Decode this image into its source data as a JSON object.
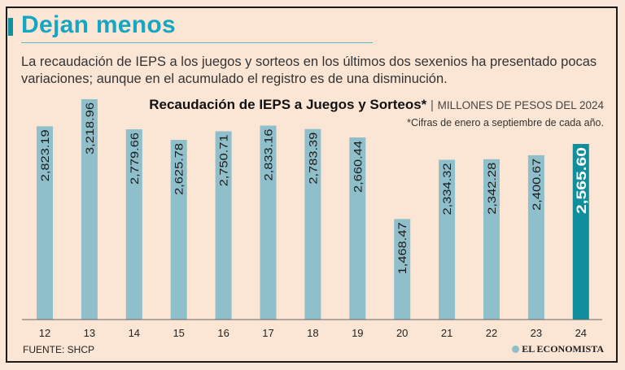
{
  "header": {
    "title": "Dejan menos",
    "subtitle": "La recaudación de IEPS a los juegos y sorteos en los últimos dos sexenios ha presentado pocas variaciones; aunque en el acumulado el registro es de una disminución."
  },
  "chart_data": {
    "type": "bar",
    "title": "Recaudación de IEPS a Juegos y Sorteos*",
    "unit": "MILLONES DE PESOS DEL 2024",
    "note": "*Cifras de enero a septiembre de cada año.",
    "categories": [
      "12",
      "13",
      "14",
      "15",
      "16",
      "17",
      "18",
      "19",
      "20",
      "21",
      "22",
      "23",
      "24"
    ],
    "values": [
      2823.19,
      3218.96,
      2779.66,
      2625.78,
      2750.71,
      2833.16,
      2783.39,
      2660.44,
      1468.47,
      2334.32,
      2342.28,
      2400.67,
      2565.6
    ],
    "labels": [
      "2,823.19",
      "3,218.96",
      "2,779.66",
      "2,625.78",
      "2,750.71",
      "2,833.16",
      "2,783.39",
      "2,660.44",
      "1,468.47",
      "2,334.32",
      "2,342.28",
      "2,400.67",
      "2,565.60"
    ],
    "ylim": [
      0,
      3218.96
    ],
    "colors": {
      "bar": "#8fbfca",
      "highlight": "#118e9c"
    },
    "highlight_index": 12
  },
  "footer": {
    "source": "FUENTE: SHCP",
    "logo": "EL ECONOMISTA"
  }
}
